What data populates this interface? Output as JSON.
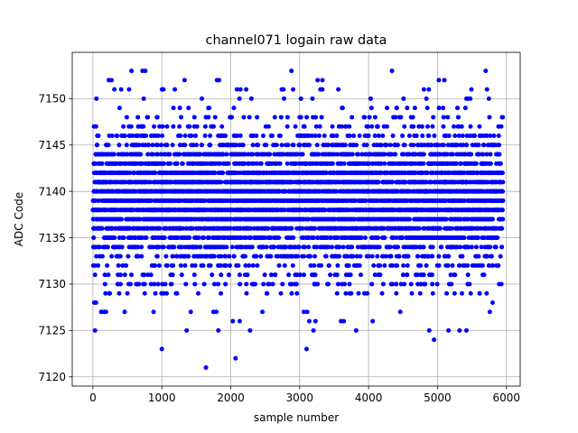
{
  "chart_data": {
    "type": "scatter",
    "title": "channel071 logain raw data",
    "xlabel": "sample number",
    "ylabel": "ADC Code",
    "xlim": [
      -300,
      6200
    ],
    "ylim": [
      7119,
      7155
    ],
    "x_ticks": [
      0,
      1000,
      2000,
      3000,
      4000,
      5000,
      6000
    ],
    "x_tick_labels": [
      "0",
      "1000",
      "2000",
      "3000",
      "4000",
      "5000",
      "6000"
    ],
    "y_ticks": [
      7120,
      7125,
      7130,
      7135,
      7140,
      7145,
      7150
    ],
    "y_tick_labels": [
      "7120",
      "7125",
      "7130",
      "7135",
      "7140",
      "7145",
      "7150"
    ],
    "grid": true,
    "marker_color": "#0000ff",
    "x_range": [
      0,
      5950
    ],
    "sample_count": 5950,
    "dense_band": [
      7131,
      7147
    ],
    "outliers": [
      {
        "x": 30,
        "y": 7125
      },
      {
        "x": 20,
        "y": 7128
      },
      {
        "x": 45,
        "y": 7128
      },
      {
        "x": 120,
        "y": 7127
      },
      {
        "x": 160,
        "y": 7127
      },
      {
        "x": 190,
        "y": 7127
      },
      {
        "x": 60,
        "y": 7145
      },
      {
        "x": 80,
        "y": 7146
      },
      {
        "x": 230,
        "y": 7152
      },
      {
        "x": 270,
        "y": 7152
      },
      {
        "x": 560,
        "y": 7153
      },
      {
        "x": 720,
        "y": 7153
      },
      {
        "x": 760,
        "y": 7153
      },
      {
        "x": 460,
        "y": 7127
      },
      {
        "x": 500,
        "y": 7129
      },
      {
        "x": 880,
        "y": 7127
      },
      {
        "x": 1000,
        "y": 7123
      },
      {
        "x": 1330,
        "y": 7152
      },
      {
        "x": 1360,
        "y": 7125
      },
      {
        "x": 1420,
        "y": 7127
      },
      {
        "x": 1640,
        "y": 7121
      },
      {
        "x": 1750,
        "y": 7127
      },
      {
        "x": 1790,
        "y": 7127
      },
      {
        "x": 1800,
        "y": 7152
      },
      {
        "x": 1830,
        "y": 7152
      },
      {
        "x": 1820,
        "y": 7125
      },
      {
        "x": 2030,
        "y": 7126
      },
      {
        "x": 2070,
        "y": 7122
      },
      {
        "x": 2130,
        "y": 7126
      },
      {
        "x": 2090,
        "y": 7151
      },
      {
        "x": 2140,
        "y": 7151
      },
      {
        "x": 2280,
        "y": 7125
      },
      {
        "x": 2460,
        "y": 7127
      },
      {
        "x": 2880,
        "y": 7153
      },
      {
        "x": 2960,
        "y": 7129
      },
      {
        "x": 3060,
        "y": 7127
      },
      {
        "x": 3110,
        "y": 7127
      },
      {
        "x": 3100,
        "y": 7123
      },
      {
        "x": 3140,
        "y": 7126
      },
      {
        "x": 3200,
        "y": 7125
      },
      {
        "x": 3230,
        "y": 7126
      },
      {
        "x": 3260,
        "y": 7152
      },
      {
        "x": 3330,
        "y": 7152
      },
      {
        "x": 3600,
        "y": 7126
      },
      {
        "x": 3640,
        "y": 7126
      },
      {
        "x": 3820,
        "y": 7125
      },
      {
        "x": 4060,
        "y": 7126
      },
      {
        "x": 4340,
        "y": 7153
      },
      {
        "x": 4460,
        "y": 7127
      },
      {
        "x": 4880,
        "y": 7125
      },
      {
        "x": 4950,
        "y": 7124
      },
      {
        "x": 5020,
        "y": 7152
      },
      {
        "x": 5100,
        "y": 7152
      },
      {
        "x": 5160,
        "y": 7125
      },
      {
        "x": 5320,
        "y": 7125
      },
      {
        "x": 5420,
        "y": 7125
      },
      {
        "x": 5700,
        "y": 7153
      },
      {
        "x": 5760,
        "y": 7127
      },
      {
        "x": 5800,
        "y": 7128
      }
    ]
  }
}
